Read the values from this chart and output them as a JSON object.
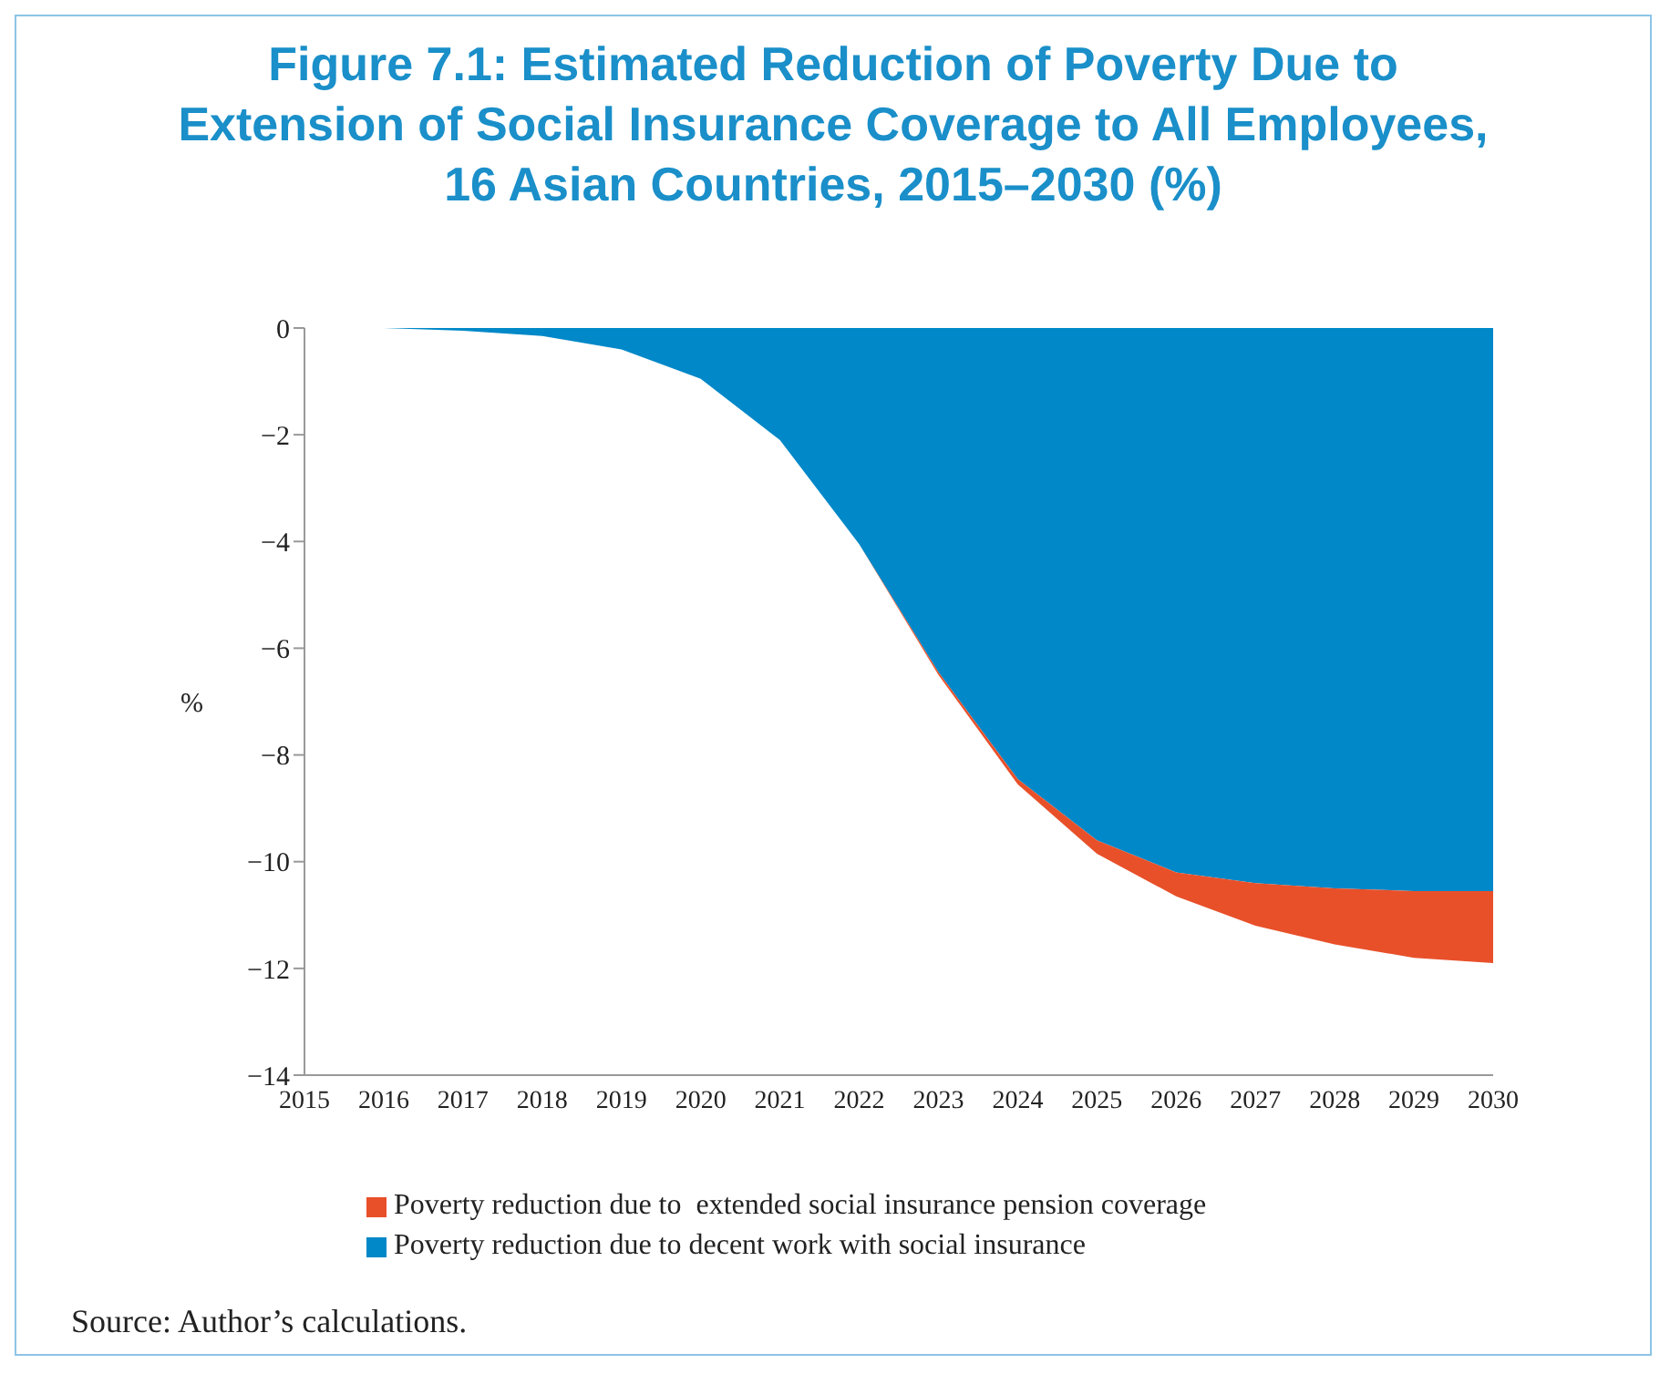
{
  "chart_data": {
    "type": "area",
    "title": "Figure 7.1: Estimated Reduction of Poverty Due to Extension of Social Insurance Coverage to All Employees, 16 Asian Countries, 2015–2030 (%)",
    "ylabel": "%",
    "categories": [
      "2015",
      "2016",
      "2017",
      "2018",
      "2019",
      "2020",
      "2021",
      "2022",
      "2023",
      "2024",
      "2025",
      "2026",
      "2027",
      "2028",
      "2029",
      "2030"
    ],
    "stacked": true,
    "series": [
      {
        "name": "Poverty reduction due to decent work with social insurance",
        "color": "#0088c8",
        "values": [
          0,
          0,
          -0.05,
          -0.15,
          -0.4,
          -0.95,
          -2.1,
          -4.05,
          -6.45,
          -8.45,
          -9.6,
          -10.2,
          -10.4,
          -10.5,
          -10.55,
          -10.55
        ]
      },
      {
        "name": "Poverty reduction due to  extended social insurance pension coverage",
        "color": "#e8502a",
        "values": [
          0,
          0,
          0,
          0,
          0,
          0,
          0,
          0,
          -0.05,
          -0.1,
          -0.25,
          -0.45,
          -0.8,
          -1.05,
          -1.25,
          -1.35
        ]
      }
    ],
    "ylim": [
      -14,
      0
    ],
    "yticks": [
      0,
      -2,
      -4,
      -6,
      -8,
      -10,
      -12,
      -14
    ],
    "grid": false,
    "legend": "bottom",
    "annotations": [
      "Source: Author’s calculations."
    ]
  }
}
